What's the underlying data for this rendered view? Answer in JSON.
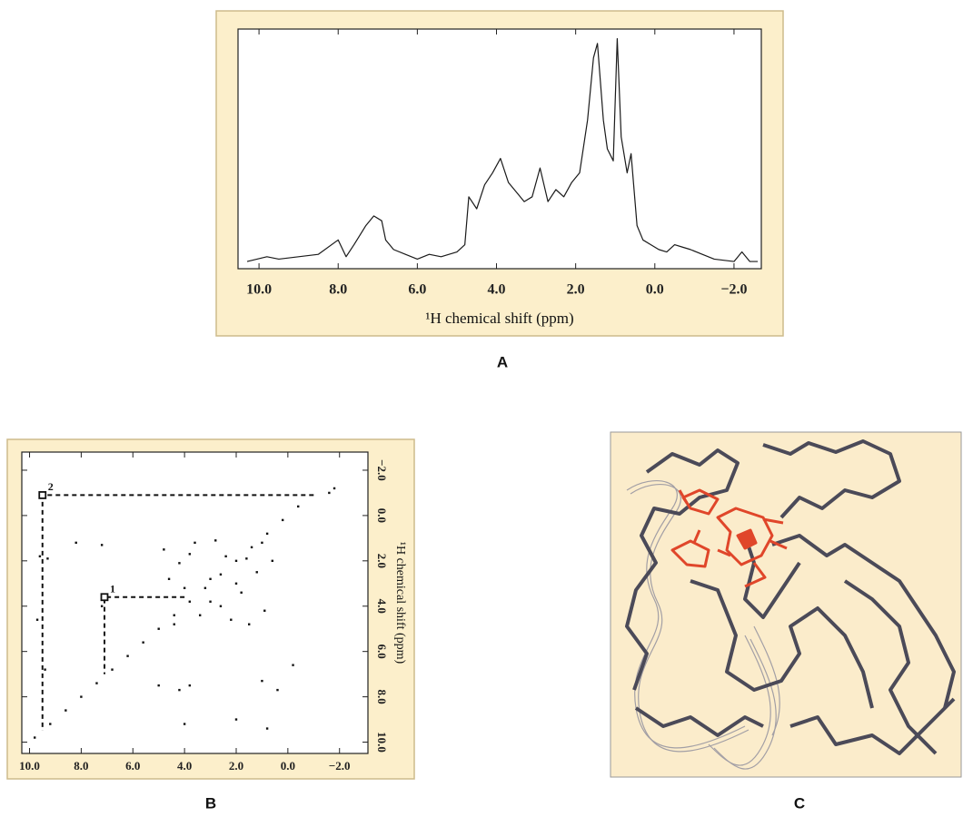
{
  "chart_data": [
    {
      "type": "line",
      "x_label": "¹H chemical shift (ppm)",
      "xlim": [
        10.53,
        -2.69
      ],
      "ylim": [
        0,
        1
      ],
      "xticks": [
        {
          "value": 10,
          "label": "10.0"
        },
        {
          "value": 8,
          "label": "8.0"
        },
        {
          "value": 6,
          "label": "6.0"
        },
        {
          "value": 4,
          "label": "4.0"
        },
        {
          "value": 2,
          "label": "2.0"
        },
        {
          "value": 0,
          "label": "0.0"
        },
        {
          "value": -2,
          "label": "−2.0"
        }
      ],
      "x": [
        10.3,
        9.8,
        9.5,
        9.0,
        8.5,
        8.0,
        7.8,
        7.6,
        7.3,
        7.1,
        6.9,
        6.8,
        6.6,
        6.3,
        6.0,
        5.7,
        5.4,
        5.0,
        4.8,
        4.7,
        4.5,
        4.3,
        4.1,
        3.9,
        3.7,
        3.5,
        3.3,
        3.1,
        2.9,
        2.7,
        2.5,
        2.3,
        2.1,
        1.9,
        1.7,
        1.55,
        1.45,
        1.3,
        1.2,
        1.05,
        0.95,
        0.85,
        0.7,
        0.6,
        0.45,
        0.3,
        0.1,
        -0.1,
        -0.3,
        -0.5,
        -0.7,
        -0.9,
        -1.2,
        -1.5,
        -2.0,
        -2.2,
        -2.4,
        -2.6
      ],
      "series": [
        {
          "color": "#1a1a1a",
          "values": [
            0.03,
            0.05,
            0.04,
            0.05,
            0.06,
            0.12,
            0.05,
            0.1,
            0.18,
            0.22,
            0.2,
            0.12,
            0.08,
            0.06,
            0.04,
            0.06,
            0.05,
            0.07,
            0.1,
            0.3,
            0.25,
            0.35,
            0.4,
            0.46,
            0.36,
            0.32,
            0.28,
            0.3,
            0.42,
            0.28,
            0.33,
            0.3,
            0.36,
            0.4,
            0.62,
            0.88,
            0.94,
            0.62,
            0.5,
            0.45,
            0.96,
            0.55,
            0.4,
            0.48,
            0.18,
            0.12,
            0.1,
            0.08,
            0.07,
            0.1,
            0.09,
            0.08,
            0.06,
            0.04,
            0.03,
            0.07,
            0.03,
            0.03
          ]
        }
      ]
    },
    {
      "type": "scatter",
      "y_label": "¹H chemical shift (ppm)",
      "xlim": [
        10.3,
        -3.1
      ],
      "ylim": [
        10.5,
        -2.8
      ],
      "xticks": [
        {
          "value": 10,
          "label": "10.0"
        },
        {
          "value": 8,
          "label": "8.0"
        },
        {
          "value": 6,
          "label": "6.0"
        },
        {
          "value": 4,
          "label": "4.0"
        },
        {
          "value": 2,
          "label": "2.0"
        },
        {
          "value": 0,
          "label": "0.0"
        },
        {
          "value": -2,
          "label": "−2.0"
        }
      ],
      "yticks": [
        {
          "value": -2,
          "label": "−2.0"
        },
        {
          "value": 0,
          "label": "0.0"
        },
        {
          "value": 2,
          "label": "2.0"
        },
        {
          "value": 4,
          "label": "4.0"
        },
        {
          "value": 6,
          "label": "6.0"
        },
        {
          "value": 8,
          "label": "8.0"
        },
        {
          "value": 10,
          "label": "10.0"
        }
      ],
      "color": "#111111",
      "x": [
        9.8,
        9.2,
        8.6,
        8.0,
        7.4,
        6.8,
        6.2,
        5.6,
        5.0,
        4.4,
        3.8,
        3.2,
        2.6,
        2.0,
        1.4,
        0.8,
        0.2,
        -0.4,
        4.8,
        4.2,
        3.6,
        3.0,
        2.4,
        1.8,
        1.2,
        0.9,
        1.5,
        2.2,
        3.4,
        4.0,
        4.6,
        2.8,
        1.0,
        0.6,
        3.8,
        2.0,
        4.4,
        3.0,
        1.6,
        2.6,
        9.6,
        9.3,
        8.2,
        7.2,
        9.7,
        9.4,
        7.2,
        5.0,
        4.2,
        3.8,
        1.0,
        0.4,
        0.8,
        2.0,
        4.0,
        -0.2,
        -1.8,
        -1.6
      ],
      "y": [
        9.8,
        9.2,
        8.6,
        8.0,
        7.4,
        6.8,
        6.2,
        5.6,
        5.0,
        4.4,
        3.8,
        3.2,
        2.6,
        2.0,
        1.4,
        0.8,
        0.2,
        -0.4,
        1.5,
        2.1,
        1.2,
        2.8,
        1.8,
        3.4,
        2.5,
        4.2,
        4.8,
        4.6,
        4.4,
        3.2,
        2.8,
        1.1,
        1.2,
        2.0,
        1.7,
        3.0,
        4.8,
        3.8,
        1.9,
        4.0,
        1.8,
        1.9,
        1.2,
        1.3,
        4.6,
        6.8,
        4.0,
        7.5,
        7.7,
        7.5,
        7.3,
        7.7,
        9.4,
        9.0,
        9.2,
        6.6,
        -1.2,
        -1.0
      ],
      "annotations": [
        {
          "text": "1",
          "x": 7.1,
          "y": 3.6
        },
        {
          "text": "2",
          "x": 9.5,
          "y": -0.9
        }
      ],
      "dashed_lines": [
        {
          "x": [
            4.0,
            7.1,
            7.1
          ],
          "y": [
            3.6,
            3.6,
            7.0
          ]
        },
        {
          "x": [
            -1.0,
            9.5,
            9.5
          ],
          "y": [
            -0.9,
            -0.9,
            9.5
          ]
        }
      ]
    }
  ],
  "figure": {
    "panel_labels": [
      "A",
      "B",
      "C"
    ]
  }
}
